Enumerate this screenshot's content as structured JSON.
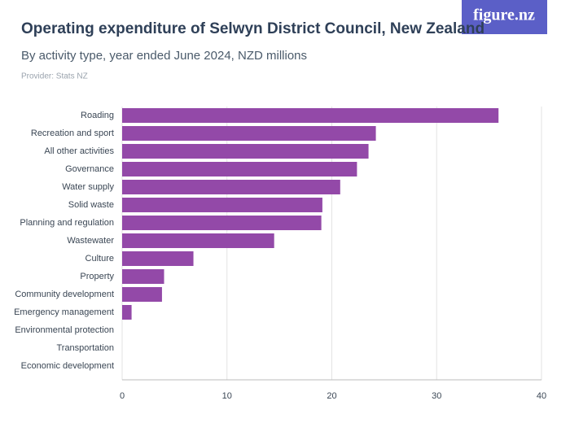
{
  "chart_data": {
    "type": "bar",
    "orientation": "horizontal",
    "title": "Operating expenditure of Selwyn District Council, New Zealand",
    "subtitle": "By activity type, year ended June 2024, NZD millions",
    "provider": "Provider: Stats NZ",
    "logo": "figure.nz",
    "categories": [
      "Roading",
      "Recreation and sport",
      "All other activities",
      "Governance",
      "Water supply",
      "Solid waste",
      "Planning and regulation",
      "Wastewater",
      "Culture",
      "Property",
      "Community development",
      "Emergency management",
      "Environmental protection",
      "Transportation",
      "Economic development"
    ],
    "values": [
      35.9,
      24.2,
      23.5,
      22.4,
      20.8,
      19.1,
      19.0,
      14.5,
      6.8,
      4.0,
      3.8,
      0.9,
      0,
      0,
      0
    ],
    "color": "#9349a8",
    "xlim": [
      0,
      40
    ],
    "xticks": [
      0,
      10,
      20,
      30,
      40
    ],
    "grid": true
  }
}
